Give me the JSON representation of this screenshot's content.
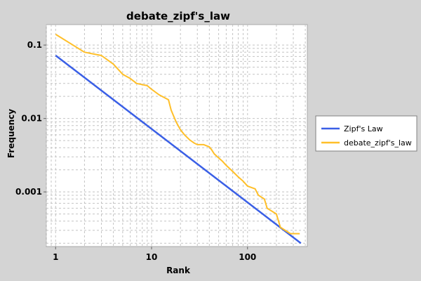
{
  "chart_data": {
    "type": "line",
    "title": "debate_zipf's_law",
    "xlabel": "Rank",
    "ylabel": "Frequency",
    "x_scale": "log",
    "y_scale": "log",
    "xlim": [
      0.8,
      420
    ],
    "ylim": [
      0.00018,
      0.19
    ],
    "x_ticks": [
      {
        "value": 1,
        "label": "1"
      },
      {
        "value": 10,
        "label": "10"
      },
      {
        "value": 100,
        "label": "100"
      }
    ],
    "y_ticks": [
      {
        "value": 0.1,
        "label": "0.1"
      },
      {
        "value": 0.01,
        "label": "0.01"
      },
      {
        "value": 0.001,
        "label": "0.001"
      }
    ],
    "grid": true,
    "legend_position": "right",
    "series": [
      {
        "name": "Zipf's Law",
        "color": "#3a5fe6",
        "x": [
          1,
          360
        ],
        "y": [
          0.072,
          0.0002
        ]
      },
      {
        "name": "debate_zipf's_law",
        "color": "#ffbf29",
        "x": [
          1,
          2,
          3,
          4,
          5,
          6,
          7,
          9,
          10,
          12,
          15,
          16,
          18,
          20,
          22,
          25,
          28,
          30,
          35,
          40,
          42,
          45,
          50,
          55,
          60,
          70,
          80,
          90,
          100,
          120,
          130,
          150,
          160,
          200,
          220,
          280,
          300,
          350
        ],
        "y": [
          0.14,
          0.08,
          0.072,
          0.055,
          0.04,
          0.035,
          0.03,
          0.028,
          0.025,
          0.021,
          0.018,
          0.013,
          0.009,
          0.007,
          0.006,
          0.0051,
          0.0046,
          0.0044,
          0.0044,
          0.0041,
          0.0038,
          0.0033,
          0.0029,
          0.0026,
          0.0023,
          0.0019,
          0.0016,
          0.0014,
          0.0012,
          0.0011,
          0.0009,
          0.0008,
          0.0006,
          0.0005,
          0.00033,
          0.00027,
          0.00027,
          0.00027
        ]
      }
    ]
  }
}
